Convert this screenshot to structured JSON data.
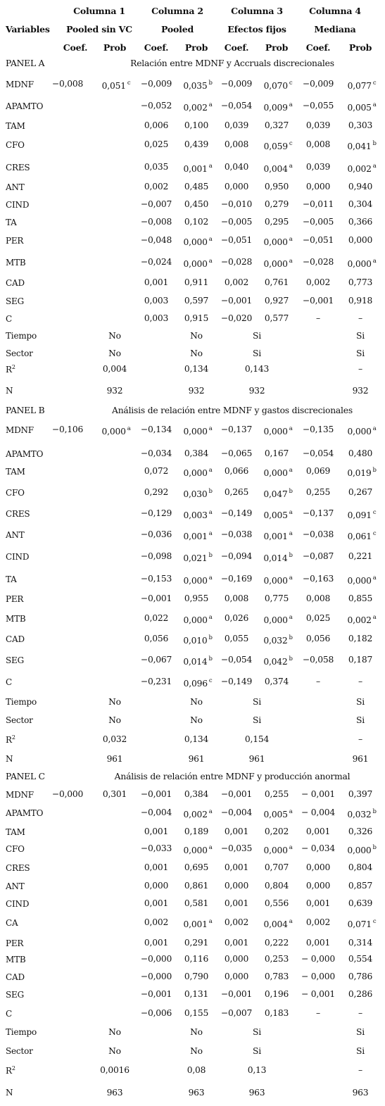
{
  "header": {
    "col1": "Columna 1",
    "col2": "Columna 2",
    "col3": "Columna 3",
    "col4": "Columna 4",
    "variables": "Variables",
    "sub1": "Pooled sin VC",
    "sub2": "Pooled",
    "sub3": "Efectos fijos",
    "sub4": "Mediana",
    "coef": "Coef.",
    "prob": "Prob"
  },
  "panels": [
    {
      "name": "PANEL A",
      "caption": "Relación entre MDNF y Accruals discrecionales",
      "rows": [
        {
          "label": "MDNF",
          "c": [
            "−0,008",
            "0,051",
            "−0,009",
            "0,035",
            "−0,009",
            "0,070",
            "−0,009",
            "0,077"
          ],
          "s": [
            "",
            "c",
            "",
            "b",
            "",
            "c",
            "",
            "c"
          ]
        },
        {
          "label": "APAMTO",
          "c": [
            "",
            "",
            "−0,052",
            "0,002",
            "−0,054",
            "0,009",
            "−0,055",
            "0,005"
          ],
          "s": [
            "",
            "",
            "",
            "a",
            "",
            "a",
            "",
            "a"
          ]
        },
        {
          "label": "TAM",
          "c": [
            "",
            "",
            "0,006",
            "0,100",
            "0,039",
            "0,327",
            "0,039",
            "0,303"
          ],
          "s": [
            "",
            "",
            "",
            "",
            "",
            "",
            "",
            ""
          ]
        },
        {
          "label": "CFO",
          "c": [
            "",
            "",
            "0,025",
            "0,439",
            "0,008",
            "0,059",
            "0,008",
            "0,041"
          ],
          "s": [
            "",
            "",
            "",
            "",
            "",
            "c",
            "",
            "b"
          ]
        },
        {
          "label": "CRES",
          "c": [
            "",
            "",
            "0,035",
            "0,001",
            "0,040",
            "0,004",
            "0,039",
            "0,002"
          ],
          "s": [
            "",
            "",
            "",
            "a",
            "",
            "a",
            "",
            "a"
          ]
        },
        {
          "label": "ANT",
          "c": [
            "",
            "",
            "0,002",
            "0,485",
            "0,000",
            "0,950",
            "0,000",
            "0,940"
          ],
          "s": [
            "",
            "",
            "",
            "",
            "",
            "",
            "",
            ""
          ]
        },
        {
          "label": "CIND",
          "c": [
            "",
            "",
            "−0,007",
            "0,450",
            "−0,010",
            "0,279",
            "−0,011",
            "0,304"
          ],
          "s": [
            "",
            "",
            "",
            "",
            "",
            "",
            "",
            ""
          ]
        },
        {
          "label": "TA",
          "c": [
            "",
            "",
            "−0,008",
            "0,102",
            "−0,005",
            "0,295",
            "−0,005",
            "0,366"
          ],
          "s": [
            "",
            "",
            "",
            "",
            "",
            "",
            "",
            ""
          ]
        },
        {
          "label": "PER",
          "c": [
            "",
            "",
            "−0,048",
            "0,000",
            "−0,051",
            "0,000",
            "−0,051",
            "0,000"
          ],
          "s": [
            "",
            "",
            "",
            "a",
            "",
            "a",
            "",
            ""
          ]
        },
        {
          "label": "MTB",
          "c": [
            "",
            "",
            "−0,024",
            "0,000",
            "−0,028",
            "0,000",
            "−0,028",
            "0,000"
          ],
          "s": [
            "",
            "",
            "",
            "a",
            "",
            "a",
            "",
            "a"
          ]
        },
        {
          "label": "CAD",
          "c": [
            "",
            "",
            "0,001",
            "0,911",
            "0,002",
            "0,761",
            "0,002",
            "0,773"
          ],
          "s": [
            "",
            "",
            "",
            "",
            "",
            "",
            "",
            ""
          ]
        },
        {
          "label": "SEG",
          "c": [
            "",
            "",
            "0,003",
            "0,597",
            "−0,001",
            "0,927",
            "−0,001",
            "0,918"
          ],
          "s": [
            "",
            "",
            "",
            "",
            "",
            "",
            "",
            ""
          ]
        },
        {
          "label": "C",
          "c": [
            "",
            "",
            "0,003",
            "0,915",
            "−0,020",
            "0,577",
            "–",
            "–"
          ],
          "s": [
            "",
            "",
            "",
            "",
            "",
            "",
            "",
            ""
          ]
        }
      ],
      "tiempo": [
        "No",
        "No",
        "Si",
        "Si"
      ],
      "sector": [
        "No",
        "No",
        "Si",
        "Si"
      ],
      "r2": [
        "0,004",
        "0,134",
        "0,143",
        "–"
      ],
      "n": [
        "932",
        "932",
        "932",
        "932"
      ]
    },
    {
      "name": "PANEL B",
      "caption": "Análisis de relación entre MDNF y gastos discrecionales",
      "rows": [
        {
          "label": "MDNF",
          "c": [
            "−0,106",
            "0,000",
            "−0,134",
            "0,000",
            "−0,137",
            "0,000",
            "−0,135",
            "0,000"
          ],
          "s": [
            "",
            "a",
            "",
            "a",
            "",
            "a",
            "",
            "a"
          ]
        },
        {
          "label": "APAMTO",
          "c": [
            "",
            "",
            "−0,034",
            "0,384",
            "−0,065",
            "0,167",
            "−0,054",
            "0,480"
          ],
          "s": [
            "",
            "",
            "",
            "",
            "",
            "",
            "",
            ""
          ]
        },
        {
          "label": "TAM",
          "c": [
            "",
            "",
            "0,072",
            "0,000",
            "0,066",
            "0,000",
            "0,069",
            "0,019"
          ],
          "s": [
            "",
            "",
            "",
            "a",
            "",
            "a",
            "",
            "b"
          ]
        },
        {
          "label": "CFO",
          "c": [
            "",
            "",
            "0,292",
            "0,030",
            "0,265",
            "0,047",
            "0,255",
            "0,267"
          ],
          "s": [
            "",
            "",
            "",
            "b",
            "",
            "b",
            "",
            ""
          ]
        },
        {
          "label": "CRES",
          "c": [
            "",
            "",
            "−0,129",
            "0,003",
            "−0,149",
            "0,005",
            "−0,137",
            "0,091"
          ],
          "s": [
            "",
            "",
            "",
            "a",
            "",
            "a",
            "",
            "c"
          ]
        },
        {
          "label": "ANT",
          "c": [
            "",
            "",
            "−0,036",
            "0,001",
            "−0,038",
            "0,001",
            "−0,038",
            "0,061"
          ],
          "s": [
            "",
            "",
            "",
            "a",
            "",
            "a",
            "",
            "c"
          ]
        },
        {
          "label": "CIND",
          "c": [
            "",
            "",
            "−0,098",
            "0,021",
            "−0,094",
            "0,014",
            "−0,087",
            "0,221"
          ],
          "s": [
            "",
            "",
            "",
            "b",
            "",
            "b",
            "",
            ""
          ]
        },
        {
          "label": "TA",
          "c": [
            "",
            "",
            "−0,153",
            "0,000",
            "−0,169",
            "0,000",
            "−0,163",
            "0,000"
          ],
          "s": [
            "",
            "",
            "",
            "a",
            "",
            "a",
            "",
            "a"
          ]
        },
        {
          "label": "PER",
          "c": [
            "",
            "",
            "−0,001",
            "0,955",
            "0,008",
            "0,775",
            "0,008",
            "0,855"
          ],
          "s": [
            "",
            "",
            "",
            "",
            "",
            "",
            "",
            ""
          ]
        },
        {
          "label": "MTB",
          "c": [
            "",
            "",
            "0,022",
            "0,000",
            "0,026",
            "0,000",
            "0,025",
            "0,002"
          ],
          "s": [
            "",
            "",
            "",
            "a",
            "",
            "a",
            "",
            "a"
          ]
        },
        {
          "label": "CAD",
          "c": [
            "",
            "",
            "0,056",
            "0,010",
            "0,055",
            "0,032",
            "0,056",
            "0,182"
          ],
          "s": [
            "",
            "",
            "",
            "b",
            "",
            "b",
            "",
            ""
          ]
        },
        {
          "label": "SEG",
          "c": [
            "",
            "",
            "−0,067",
            "0,014",
            "−0,054",
            "0,042",
            "−0,058",
            "0,187"
          ],
          "s": [
            "",
            "",
            "",
            "b",
            "",
            "b",
            "",
            ""
          ]
        },
        {
          "label": "C",
          "c": [
            "",
            "",
            "−0,231",
            "0,096",
            "−0,149",
            "0,374",
            "–",
            "–"
          ],
          "s": [
            "",
            "",
            "",
            "c",
            "",
            "",
            "",
            ""
          ]
        }
      ],
      "tiempo": [
        "No",
        "No",
        "Si",
        "Si"
      ],
      "sector": [
        "No",
        "No",
        "Si",
        "Si"
      ],
      "r2": [
        "0,032",
        "0,134",
        "0,154",
        "–"
      ],
      "n": [
        "961",
        "961",
        "961",
        "961"
      ]
    },
    {
      "name": "PANEL C",
      "caption": "Análisis de relación entre MDNF y producción anormal",
      "rows": [
        {
          "label": "MDNF",
          "c": [
            "−0,000",
            "0,301",
            "−0,001",
            "0,384",
            "−0,001",
            "0,255",
            "− 0,001",
            "0,397"
          ],
          "s": [
            "",
            "",
            "",
            "",
            "",
            "",
            "",
            ""
          ]
        },
        {
          "label": "APAMTO",
          "c": [
            "",
            "",
            "−0,004",
            "0,002",
            "−0,004",
            "0,005",
            "− 0,004",
            "0,032"
          ],
          "s": [
            "",
            "",
            "",
            "a",
            "",
            "a",
            "",
            "b"
          ]
        },
        {
          "label": "TAM",
          "c": [
            "",
            "",
            "0,001",
            "0,189",
            "0,001",
            "0,202",
            "0,001",
            "0,326"
          ],
          "s": [
            "",
            "",
            "",
            "",
            "",
            "",
            "",
            ""
          ]
        },
        {
          "label": "CFO",
          "c": [
            "",
            "",
            "−0,033",
            "0,000",
            "−0,035",
            "0,000",
            "− 0,034",
            "0,000"
          ],
          "s": [
            "",
            "",
            "",
            "a",
            "",
            "a",
            "",
            "b"
          ]
        },
        {
          "label": "CRES",
          "c": [
            "",
            "",
            "0,001",
            "0,695",
            "0,001",
            "0,707",
            "0,000",
            "0,804"
          ],
          "s": [
            "",
            "",
            "",
            "",
            "",
            "",
            "",
            ""
          ]
        },
        {
          "label": "ANT",
          "c": [
            "",
            "",
            "0,000",
            "0,861",
            "0,000",
            "0,804",
            "0,000",
            "0,857"
          ],
          "s": [
            "",
            "",
            "",
            "",
            "",
            "",
            "",
            ""
          ]
        },
        {
          "label": "CIND",
          "c": [
            "",
            "",
            "0,001",
            "0,581",
            "0,001",
            "0,556",
            "0,001",
            "0,639"
          ],
          "s": [
            "",
            "",
            "",
            "",
            "",
            "",
            "",
            ""
          ]
        },
        {
          "label": "CA",
          "c": [
            "",
            "",
            "0,002",
            "0,001",
            "0,002",
            "0,004",
            "0,002",
            "0,071"
          ],
          "s": [
            "",
            "",
            "",
            "a",
            "",
            "a",
            "",
            "c"
          ]
        },
        {
          "label": "PER",
          "c": [
            "",
            "",
            "0,001",
            "0,291",
            "0,001",
            "0,222",
            "0,001",
            "0,314"
          ],
          "s": [
            "",
            "",
            "",
            "",
            "",
            "",
            "",
            ""
          ]
        },
        {
          "label": "MTB",
          "c": [
            "",
            "",
            "−0,000",
            "0,116",
            "0,000",
            "0,253",
            "− 0,000",
            "0,554"
          ],
          "s": [
            "",
            "",
            "",
            "",
            "",
            "",
            "",
            ""
          ]
        },
        {
          "label": "CAD",
          "c": [
            "",
            "",
            "−0,000",
            "0,790",
            "0,000",
            "0,783",
            "− 0,000",
            "0,786"
          ],
          "s": [
            "",
            "",
            "",
            "",
            "",
            "",
            "",
            ""
          ]
        },
        {
          "label": "SEG",
          "c": [
            "",
            "",
            "−0,001",
            "0,131",
            "−0,001",
            "0,196",
            "− 0,001",
            "0,286"
          ],
          "s": [
            "",
            "",
            "",
            "",
            "",
            "",
            "",
            ""
          ]
        },
        {
          "label": "C",
          "c": [
            "",
            "",
            "−0,006",
            "0,155",
            "−0,007",
            "0,183",
            "–",
            "–"
          ],
          "s": [
            "",
            "",
            "",
            "",
            "",
            "",
            "",
            ""
          ]
        }
      ],
      "tiempo": [
        "No",
        "No",
        "Si",
        "Si"
      ],
      "sector": [
        "No",
        "No",
        "Si",
        "Si"
      ],
      "r2": [
        "0,0016",
        "0,08",
        "0,13",
        "–"
      ],
      "n": [
        "963",
        "963",
        "963",
        "963"
      ]
    }
  ],
  "row_labels": {
    "tiempo": "Tiempo",
    "sector": "Sector",
    "r2_base": "R",
    "r2_exp": "2",
    "n": "N"
  }
}
